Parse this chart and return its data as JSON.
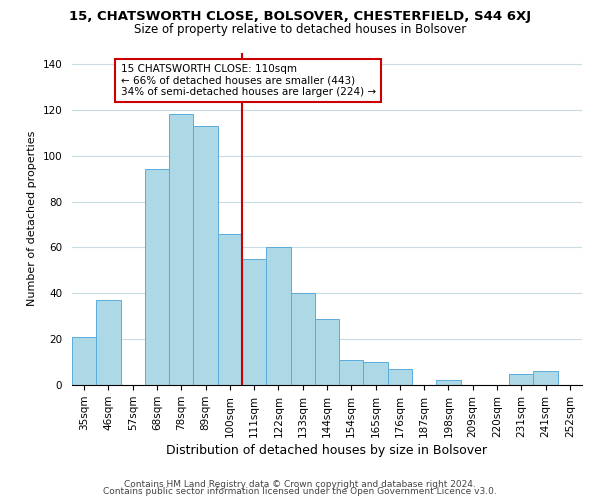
{
  "title1": "15, CHATSWORTH CLOSE, BOLSOVER, CHESTERFIELD, S44 6XJ",
  "title2": "Size of property relative to detached houses in Bolsover",
  "xlabel": "Distribution of detached houses by size in Bolsover",
  "ylabel": "Number of detached properties",
  "bin_labels": [
    "35sqm",
    "46sqm",
    "57sqm",
    "68sqm",
    "78sqm",
    "89sqm",
    "100sqm",
    "111sqm",
    "122sqm",
    "133sqm",
    "144sqm",
    "154sqm",
    "165sqm",
    "176sqm",
    "187sqm",
    "198sqm",
    "209sqm",
    "220sqm",
    "231sqm",
    "241sqm",
    "252sqm"
  ],
  "bar_heights": [
    21,
    37,
    0,
    94,
    118,
    113,
    66,
    55,
    60,
    40,
    29,
    11,
    10,
    7,
    0,
    2,
    0,
    0,
    5,
    6,
    0
  ],
  "bar_color": "#add8e6",
  "bar_edge_color": "#5aabdb",
  "vline_x_index": 7,
  "vline_color": "#cc0000",
  "annotation_title": "15 CHATSWORTH CLOSE: 110sqm",
  "annotation_line1": "← 66% of detached houses are smaller (443)",
  "annotation_line2": "34% of semi-detached houses are larger (224) →",
  "annotation_box_color": "#ffffff",
  "annotation_box_edge_color": "#cc0000",
  "ylim": [
    0,
    145
  ],
  "yticks": [
    0,
    20,
    40,
    60,
    80,
    100,
    120,
    140
  ],
  "footer1": "Contains HM Land Registry data © Crown copyright and database right 2024.",
  "footer2": "Contains public sector information licensed under the Open Government Licence v3.0.",
  "bg_color": "#ffffff",
  "grid_color": "#c8dce8",
  "title1_fontsize": 9.5,
  "title2_fontsize": 8.5,
  "xlabel_fontsize": 9,
  "ylabel_fontsize": 8,
  "tick_fontsize": 7.5,
  "footer_fontsize": 6.5,
  "ann_fontsize": 7.5
}
